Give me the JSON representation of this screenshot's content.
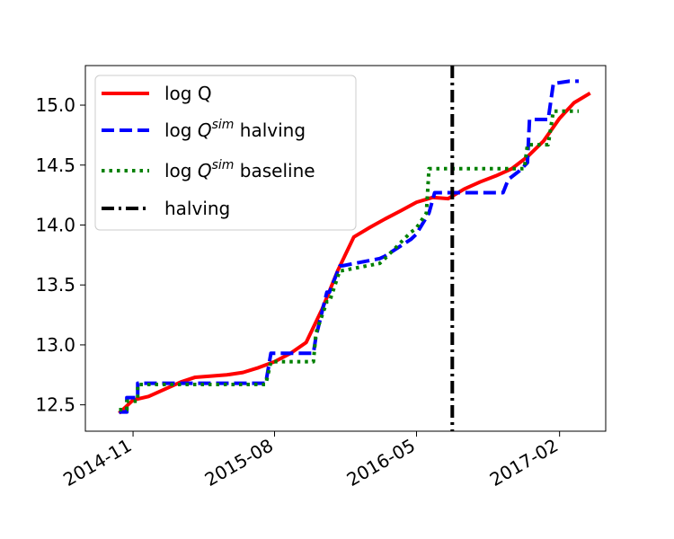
{
  "chart_data": {
    "type": "line",
    "title": "",
    "xlabel": "",
    "ylabel": "",
    "xlim": [
      "2014-08-01",
      "2017-05-01"
    ],
    "ylim": [
      12.28,
      15.33
    ],
    "x_ticks": [
      "2014-11",
      "2015-08",
      "2016-05",
      "2017-02"
    ],
    "y_ticks": [
      "12.5",
      "13.0",
      "13.5",
      "14.0",
      "14.5",
      "15.0"
    ],
    "legend_position": "top-left",
    "grid": false,
    "series": [
      {
        "name": "log Q",
        "legend_parts": [
          "log Q"
        ],
        "color": "#ff0000",
        "style": "solid",
        "x": [
          "2014-10-05",
          "2014-11-01",
          "2014-12-01",
          "2015-01-01",
          "2015-02-01",
          "2015-03-01",
          "2015-04-01",
          "2015-05-01",
          "2015-06-01",
          "2015-07-01",
          "2015-08-01",
          "2015-09-01",
          "2015-10-01",
          "2015-11-01",
          "2015-12-01",
          "2016-01-01",
          "2016-02-01",
          "2016-03-01",
          "2016-04-01",
          "2016-05-01",
          "2016-06-01",
          "2016-07-01",
          "2016-08-01",
          "2016-09-01",
          "2016-10-01",
          "2016-11-01",
          "2016-12-01",
          "2017-01-01",
          "2017-02-01",
          "2017-03-01",
          "2017-04-01"
        ],
        "values": [
          12.43,
          12.54,
          12.57,
          12.63,
          12.69,
          12.73,
          12.74,
          12.75,
          12.77,
          12.81,
          12.86,
          12.93,
          13.02,
          13.3,
          13.62,
          13.9,
          13.98,
          14.05,
          14.12,
          14.19,
          14.23,
          14.22,
          14.3,
          14.36,
          14.41,
          14.47,
          14.57,
          14.7,
          14.89,
          15.02,
          15.1
        ]
      },
      {
        "name": "log Q^sim halving",
        "legend_parts": [
          "log ",
          "Q",
          "sim",
          " halving"
        ],
        "color": "#0000ff",
        "style": "dashed",
        "x": [
          "2014-10-05",
          "2014-10-20",
          "2014-10-20",
          "2014-11-10",
          "2014-11-10",
          "2015-07-15",
          "2015-07-25",
          "2015-10-15",
          "2015-10-20",
          "2015-11-10",
          "2015-11-15",
          "2015-12-05",
          "2015-12-10",
          "2016-02-20",
          "2016-03-01",
          "2016-04-20",
          "2016-04-30",
          "2016-05-25",
          "2016-06-05",
          "2016-10-15",
          "2016-10-25",
          "2016-11-15",
          "2016-12-01",
          "2016-12-05",
          "2017-01-01",
          "2017-01-10",
          "2017-01-20",
          "2017-02-20",
          "2017-03-10"
        ],
        "values": [
          12.44,
          12.44,
          12.56,
          12.56,
          12.68,
          12.68,
          12.93,
          12.93,
          13.07,
          13.44,
          13.44,
          13.66,
          13.66,
          13.72,
          13.74,
          13.88,
          13.92,
          14.1,
          14.27,
          14.27,
          14.38,
          14.45,
          14.52,
          14.88,
          14.88,
          14.88,
          15.18,
          15.2,
          15.2
        ]
      },
      {
        "name": "log Q^sim baseline",
        "legend_parts": [
          "log ",
          "Q",
          "sim",
          " baseline"
        ],
        "color": "#008000",
        "style": "dotted",
        "x": [
          "2014-10-05",
          "2014-10-20",
          "2014-10-20",
          "2014-11-10",
          "2014-11-10",
          "2015-07-15",
          "2015-07-25",
          "2015-10-15",
          "2015-10-20",
          "2015-11-10",
          "2015-11-15",
          "2015-12-05",
          "2015-12-10",
          "2016-02-20",
          "2016-03-01",
          "2016-04-20",
          "2016-04-30",
          "2016-05-20",
          "2016-05-25",
          "2016-11-25",
          "2016-12-01",
          "2017-01-10",
          "2017-01-20",
          "2017-03-10"
        ],
        "values": [
          12.46,
          12.46,
          12.53,
          12.53,
          12.67,
          12.67,
          12.86,
          12.86,
          13.1,
          13.36,
          13.36,
          13.62,
          13.62,
          13.68,
          13.72,
          13.94,
          13.97,
          14.1,
          14.47,
          14.47,
          14.67,
          14.67,
          14.95,
          14.95
        ]
      },
      {
        "name": "halving",
        "legend_parts": [
          "halving"
        ],
        "color": "#000000",
        "style": "dashdot",
        "vline_x": "2016-07-09"
      }
    ]
  }
}
